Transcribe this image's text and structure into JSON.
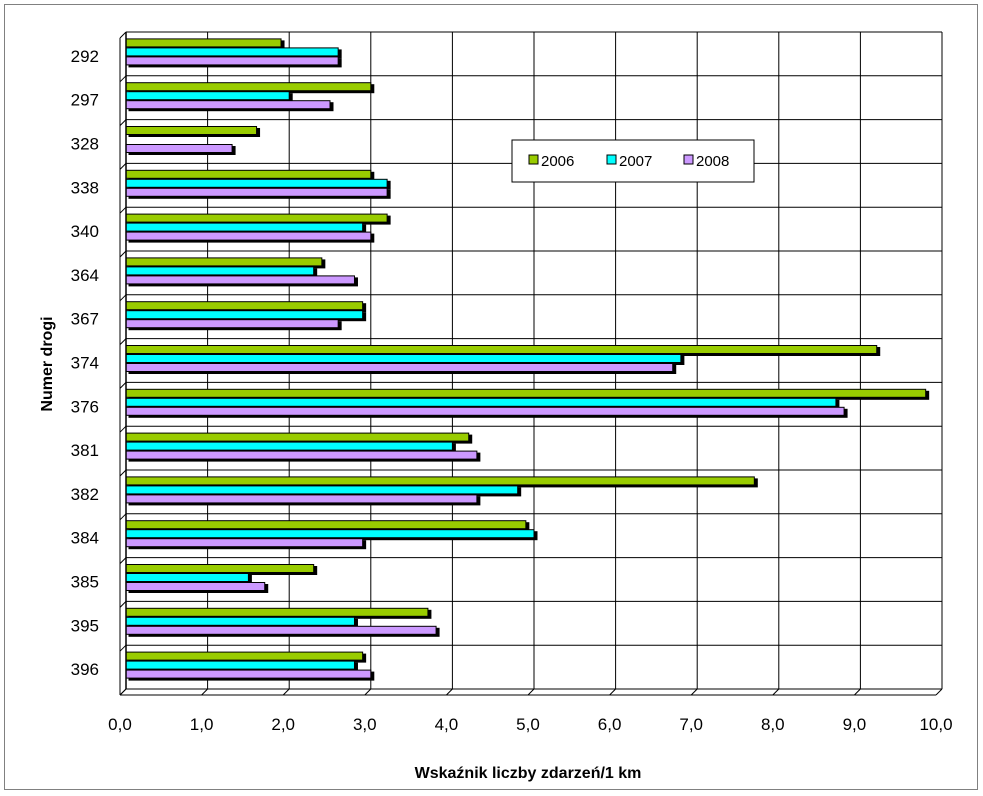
{
  "chart_data": {
    "type": "bar",
    "orientation": "horizontal",
    "title": "",
    "xlabel": "Wskaźnik liczby zdarzeń/1 km",
    "ylabel": "Numer drogi",
    "xlim": [
      0,
      10
    ],
    "x_ticks": [
      "0,0",
      "1,0",
      "2,0",
      "3,0",
      "4,0",
      "5,0",
      "6,0",
      "7,0",
      "8,0",
      "9,0",
      "10,0"
    ],
    "categories": [
      "292",
      "297",
      "328",
      "338",
      "340",
      "364",
      "367",
      "374",
      "376",
      "381",
      "382",
      "384",
      "385",
      "395",
      "396"
    ],
    "series": [
      {
        "name": "2006",
        "color": "#99cc00",
        "values": [
          1.9,
          3.0,
          1.6,
          3.0,
          3.2,
          2.4,
          2.9,
          9.2,
          9.8,
          4.2,
          7.7,
          4.9,
          2.3,
          3.7,
          2.9
        ]
      },
      {
        "name": "2007",
        "color": "#00ffff",
        "values": [
          2.6,
          2.0,
          0.0,
          3.2,
          2.9,
          2.3,
          2.9,
          6.8,
          8.7,
          4.0,
          4.8,
          5.0,
          1.5,
          2.8,
          2.8
        ]
      },
      {
        "name": "2008",
        "color": "#cc99ff",
        "values": [
          2.6,
          2.5,
          1.3,
          3.2,
          3.0,
          2.8,
          2.6,
          6.7,
          8.8,
          4.3,
          4.3,
          2.9,
          1.7,
          3.8,
          3.0
        ]
      }
    ],
    "grid": true,
    "legend_position": "top-right"
  }
}
